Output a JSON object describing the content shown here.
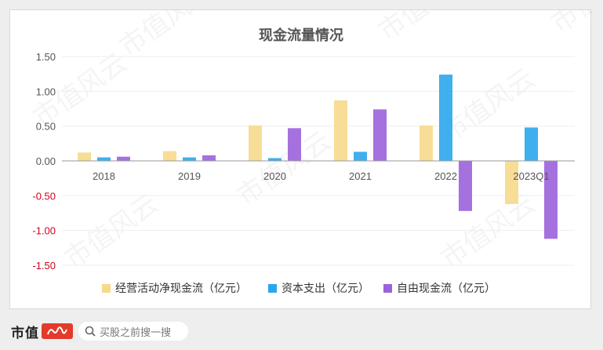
{
  "chart_data": {
    "type": "bar",
    "title": "现金流量情况",
    "categories": [
      "2018",
      "2019",
      "2020",
      "2021",
      "2022",
      "2023Q1"
    ],
    "series": [
      {
        "name": "经营活动净现金流（亿元）",
        "values": [
          0.12,
          0.14,
          0.51,
          0.87,
          0.51,
          -0.62
        ],
        "color": "#f7d98b"
      },
      {
        "name": "资本支出（亿元）",
        "values": [
          0.05,
          0.05,
          0.04,
          0.13,
          1.24,
          0.48
        ],
        "color": "#2aa6ec"
      },
      {
        "name": "自由现金流（亿元）",
        "values": [
          0.06,
          0.08,
          0.47,
          0.74,
          -0.72,
          -1.12
        ],
        "color": "#9b62db"
      }
    ],
    "yticks": [
      "1.50",
      "1.00",
      "0.50",
      "0.00",
      "-0.50",
      "-1.00",
      "-1.50"
    ],
    "ylim": [
      -1.5,
      1.5
    ],
    "legend_position": "bottom",
    "grid": true,
    "negative_tick_color": "#d0021b"
  },
  "watermark": "市值风云",
  "footer": {
    "brand": "市值",
    "search_placeholder": "买股之前搜一搜"
  }
}
